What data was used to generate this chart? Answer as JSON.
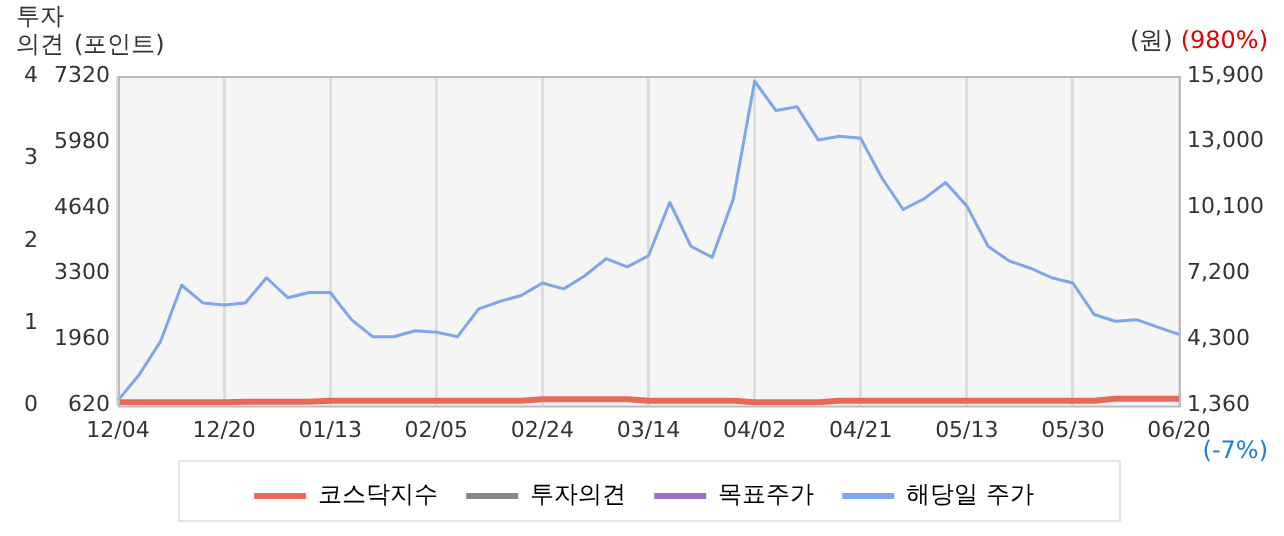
{
  "chart_data": {
    "type": "line",
    "categories": [
      "12/04",
      null,
      null,
      null,
      null,
      "12/20",
      null,
      null,
      null,
      null,
      "01/13",
      null,
      null,
      null,
      null,
      "02/05",
      null,
      null,
      null,
      null,
      "02/24",
      null,
      null,
      null,
      null,
      "03/14",
      null,
      null,
      null,
      null,
      "04/02",
      null,
      null,
      null,
      null,
      "04/21",
      null,
      null,
      null,
      null,
      "05/13",
      null,
      null,
      null,
      null,
      "05/30",
      null,
      null,
      null,
      null,
      "06/20"
    ],
    "series": [
      {
        "name": "코스닥지수",
        "color": "#e8685a",
        "values": [
          690,
          690,
          690,
          690,
          690,
          690,
          700,
          700,
          700,
          700,
          720,
          720,
          720,
          720,
          720,
          720,
          720,
          720,
          720,
          720,
          750,
          750,
          750,
          750,
          750,
          720,
          720,
          720,
          720,
          720,
          690,
          690,
          690,
          690,
          720,
          720,
          720,
          720,
          720,
          720,
          720,
          720,
          720,
          720,
          720,
          720,
          720,
          760,
          760,
          760,
          760
        ]
      },
      {
        "name": "투자의견",
        "color": "#888888",
        "axis": "y3",
        "values": [
          null,
          null,
          null,
          null,
          null,
          null,
          null,
          null,
          null,
          null,
          null,
          null,
          null,
          null,
          null,
          null,
          null,
          null,
          null,
          null,
          null,
          null,
          null,
          null,
          null,
          null,
          null,
          null,
          null,
          null,
          null,
          null,
          null,
          null,
          null,
          null,
          null,
          null,
          null,
          null,
          null,
          null,
          null,
          null,
          null,
          null,
          null,
          null,
          null,
          null,
          null
        ]
      },
      {
        "name": "목표주가",
        "color": "#a070c8",
        "axis": "y2",
        "values": [
          null,
          null,
          null,
          null,
          null,
          null,
          null,
          null,
          null,
          null,
          null,
          null,
          null,
          null,
          null,
          null,
          null,
          null,
          null,
          null,
          null,
          null,
          null,
          null,
          null,
          null,
          null,
          null,
          null,
          null,
          null,
          null,
          null,
          null,
          null,
          null,
          null,
          null,
          null,
          null,
          null,
          null,
          null,
          null,
          null,
          null,
          null,
          null,
          null,
          null,
          null
        ]
      },
      {
        "name": "해당일 주가",
        "color": "#7fa6ea",
        "axis": "y2",
        "values": [
          1590,
          2720,
          4180,
          6670,
          5890,
          5800,
          5890,
          7000,
          6120,
          6350,
          6350,
          5150,
          4400,
          4400,
          4660,
          4600,
          4400,
          5630,
          5960,
          6220,
          6770,
          6510,
          7090,
          7840,
          7480,
          7970,
          10330,
          8390,
          7900,
          10490,
          15670,
          14380,
          14540,
          13080,
          13240,
          13150,
          11400,
          10010,
          10490,
          11200,
          10170,
          8390,
          7740,
          7420,
          7000,
          6770,
          5380,
          5080,
          5150,
          4820,
          4500
        ]
      }
    ],
    "ylabel": "(포인트)",
    "y2label": "(원)",
    "y3label": "투자의견",
    "ylim": [
      620,
      7320
    ],
    "yticks": [
      620,
      1960,
      3300,
      4640,
      5980,
      7320
    ],
    "y2lim": [
      1360,
      15900
    ],
    "y2ticks": [
      {
        "value": 1360,
        "label": "1,360"
      },
      {
        "value": 4300,
        "label": "4,300"
      },
      {
        "value": 7200,
        "label": "7,200"
      },
      {
        "value": 10100,
        "label": "10,100"
      },
      {
        "value": 13000,
        "label": "13,000"
      },
      {
        "value": 15900,
        "label": "15,900"
      }
    ],
    "y3lim": [
      0,
      4
    ],
    "y3ticks": [
      0,
      1,
      2,
      3,
      4
    ],
    "annotations": [
      "(980%)",
      "(-7%)"
    ],
    "grid": "x",
    "legend": "bottom",
    "marker": "none",
    "line_style": "solid"
  }
}
